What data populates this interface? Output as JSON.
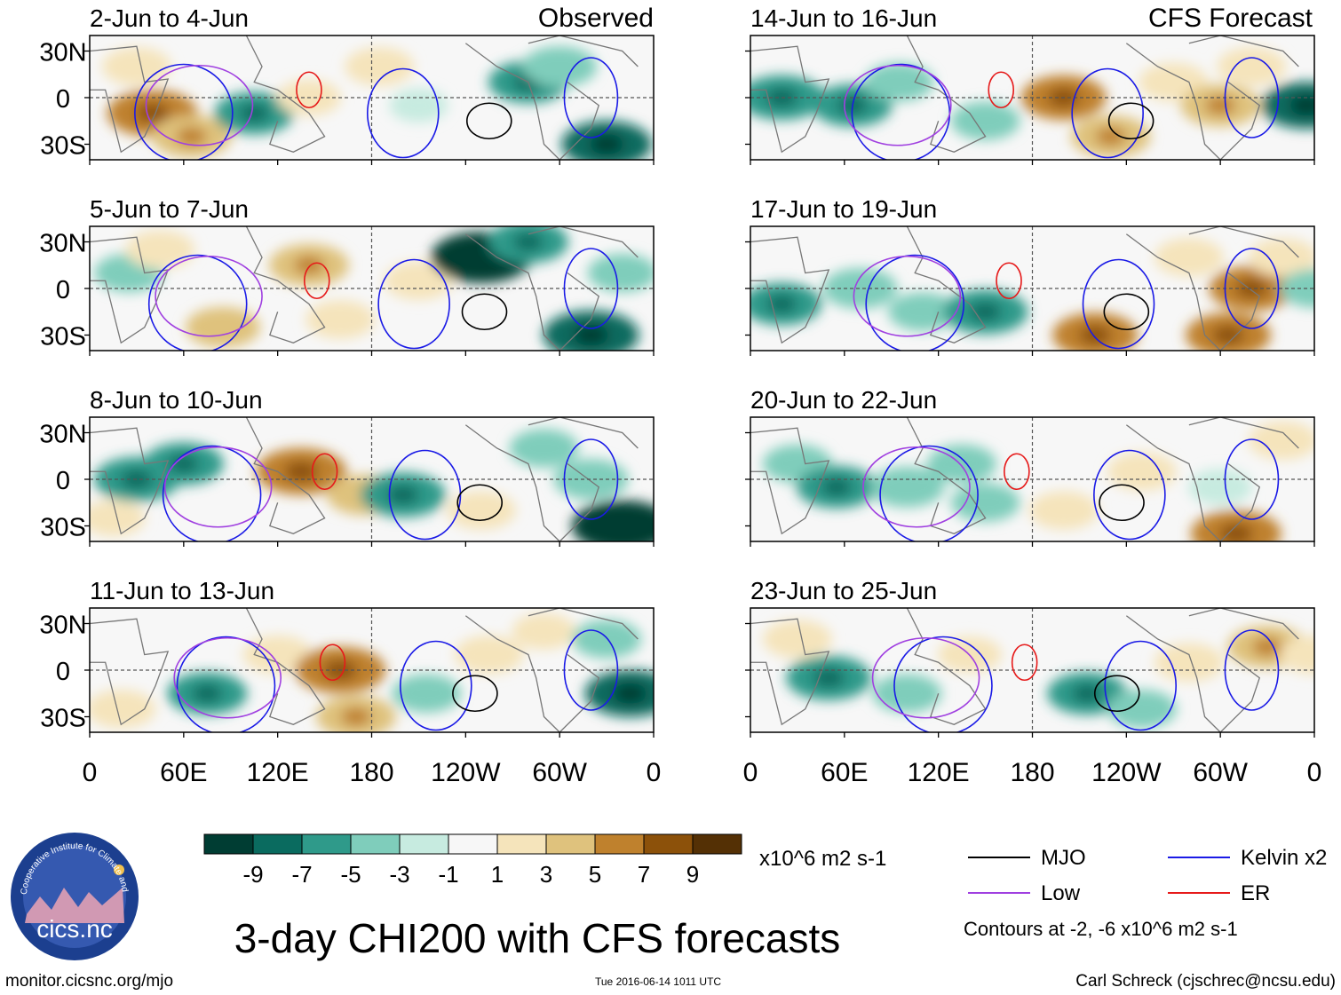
{
  "title": "3-day CHI200 with CFS forecasts",
  "left_header": "Observed",
  "right_header": "CFS Forecast",
  "units": "x10^6 m2 s-1",
  "contour_note": "Contours at -2, -6 x10^6 m2 s-1",
  "footer": {
    "url": "monitor.cicsnc.org/mjo",
    "timestamp": "Tue 2016-06-14 1011 UTC",
    "author": "Carl Schreck (cjschrec@ncsu.edu)"
  },
  "logo": {
    "text": "cics.nc",
    "ring_text": "Cooperative Institute for Climate and Satellites"
  },
  "chart_data": {
    "type": "heatmap",
    "variable": "CHI200 anomaly",
    "lat_labels": [
      "30N",
      "0",
      "30S"
    ],
    "lon_labels": [
      "0",
      "60E",
      "120E",
      "180",
      "120W",
      "60W",
      "0"
    ],
    "lat_range": [
      -40,
      40
    ],
    "lon_range": [
      0,
      360
    ],
    "panels": [
      {
        "id": "p1",
        "label": "2-Jun to 4-Jun",
        "kind": "Observed"
      },
      {
        "id": "p2",
        "label": "5-Jun to 7-Jun",
        "kind": "Observed"
      },
      {
        "id": "p3",
        "label": "8-Jun to 10-Jun",
        "kind": "Observed"
      },
      {
        "id": "p4",
        "label": "11-Jun to 13-Jun",
        "kind": "Observed"
      },
      {
        "id": "p5",
        "label": "14-Jun to 16-Jun",
        "kind": "CFS Forecast"
      },
      {
        "id": "p6",
        "label": "17-Jun to 19-Jun",
        "kind": "CFS Forecast"
      },
      {
        "id": "p7",
        "label": "20-Jun to 22-Jun",
        "kind": "CFS Forecast"
      },
      {
        "id": "p8",
        "label": "23-Jun to 25-Jun",
        "kind": "CFS Forecast"
      }
    ],
    "colorbar": {
      "tick_labels": [
        "-9",
        "-7",
        "-5",
        "-3",
        "-1",
        "1",
        "3",
        "5",
        "7",
        "9"
      ],
      "colors": [
        "#003d33",
        "#0a6b5f",
        "#2f9a8a",
        "#7fcdbb",
        "#c7ebe0",
        "#f7f7f7",
        "#f5e4bb",
        "#dfc27d",
        "#bf812d",
        "#8c510a",
        "#543005"
      ]
    },
    "legend": [
      {
        "name": "MJO",
        "color": "#000000"
      },
      {
        "name": "Kelvin x2",
        "color": "#1a1ae6"
      },
      {
        "name": "Low",
        "color": "#a040e0"
      },
      {
        "name": "ER",
        "color": "#e61a1a"
      }
    ],
    "contour_levels": [
      -2,
      -6
    ],
    "anomaly_blobs": [
      [
        {
          "lon": 40,
          "lat": -10,
          "v": 7
        },
        {
          "lon": 65,
          "lat": -25,
          "v": 5
        },
        {
          "lon": 30,
          "lat": 20,
          "v": 3
        },
        {
          "lon": 105,
          "lat": -10,
          "v": -5
        },
        {
          "lon": 140,
          "lat": 0,
          "v": 2
        },
        {
          "lon": 185,
          "lat": 20,
          "v": 3
        },
        {
          "lon": 210,
          "lat": -5,
          "v": -1
        },
        {
          "lon": 280,
          "lat": 10,
          "v": -5
        },
        {
          "lon": 300,
          "lat": 20,
          "v": -4
        },
        {
          "lon": 330,
          "lat": -30,
          "v": -7
        }
      ],
      [
        {
          "lon": 25,
          "lat": 10,
          "v": -3
        },
        {
          "lon": 45,
          "lat": 25,
          "v": 3
        },
        {
          "lon": 85,
          "lat": -25,
          "v": 4
        },
        {
          "lon": 140,
          "lat": 15,
          "v": 5
        },
        {
          "lon": 160,
          "lat": -20,
          "v": 3
        },
        {
          "lon": 210,
          "lat": 5,
          "v": 3
        },
        {
          "lon": 250,
          "lat": 20,
          "v": -9
        },
        {
          "lon": 280,
          "lat": 30,
          "v": -5
        },
        {
          "lon": 320,
          "lat": -30,
          "v": -8
        },
        {
          "lon": 340,
          "lat": 10,
          "v": -3
        }
      ],
      [
        {
          "lon": 30,
          "lat": 0,
          "v": -6
        },
        {
          "lon": 60,
          "lat": 10,
          "v": -5
        },
        {
          "lon": 15,
          "lat": -25,
          "v": 2
        },
        {
          "lon": 135,
          "lat": 5,
          "v": 7
        },
        {
          "lon": 175,
          "lat": -10,
          "v": 4
        },
        {
          "lon": 200,
          "lat": -10,
          "v": -6
        },
        {
          "lon": 250,
          "lat": -20,
          "v": 3
        },
        {
          "lon": 290,
          "lat": 20,
          "v": -3
        },
        {
          "lon": 340,
          "lat": -30,
          "v": -9
        },
        {
          "lon": 320,
          "lat": 0,
          "v": -4
        }
      ],
      [
        {
          "lon": 20,
          "lat": -25,
          "v": 3
        },
        {
          "lon": 75,
          "lat": -15,
          "v": -5
        },
        {
          "lon": 120,
          "lat": 10,
          "v": 3
        },
        {
          "lon": 160,
          "lat": 0,
          "v": 7
        },
        {
          "lon": 170,
          "lat": -30,
          "v": 5
        },
        {
          "lon": 215,
          "lat": -15,
          "v": -3
        },
        {
          "lon": 255,
          "lat": 10,
          "v": 3
        },
        {
          "lon": 290,
          "lat": 25,
          "v": 2
        },
        {
          "lon": 345,
          "lat": -15,
          "v": -7
        },
        {
          "lon": 330,
          "lat": 20,
          "v": -3
        }
      ],
      [
        {
          "lon": 20,
          "lat": 0,
          "v": -6
        },
        {
          "lon": 65,
          "lat": -5,
          "v": -5
        },
        {
          "lon": 95,
          "lat": 10,
          "v": -3
        },
        {
          "lon": 150,
          "lat": -15,
          "v": -3
        },
        {
          "lon": 200,
          "lat": 0,
          "v": 6
        },
        {
          "lon": 230,
          "lat": -25,
          "v": 5
        },
        {
          "lon": 270,
          "lat": 10,
          "v": 3
        },
        {
          "lon": 300,
          "lat": -5,
          "v": 5
        },
        {
          "lon": 320,
          "lat": 20,
          "v": 3
        },
        {
          "lon": 355,
          "lat": -5,
          "v": -7
        }
      ],
      [
        {
          "lon": 20,
          "lat": -10,
          "v": -5
        },
        {
          "lon": 70,
          "lat": 0,
          "v": -4
        },
        {
          "lon": 110,
          "lat": -15,
          "v": -3
        },
        {
          "lon": 150,
          "lat": -15,
          "v": -6
        },
        {
          "lon": 220,
          "lat": -30,
          "v": 6
        },
        {
          "lon": 280,
          "lat": 20,
          "v": 3
        },
        {
          "lon": 320,
          "lat": 0,
          "v": 6
        },
        {
          "lon": 305,
          "lat": -30,
          "v": 6
        },
        {
          "lon": 340,
          "lat": 20,
          "v": 3
        },
        {
          "lon": 360,
          "lat": 0,
          "v": -3
        }
      ],
      [
        {
          "lon": 30,
          "lat": 10,
          "v": -3
        },
        {
          "lon": 55,
          "lat": -5,
          "v": -5
        },
        {
          "lon": 100,
          "lat": -5,
          "v": -4
        },
        {
          "lon": 135,
          "lat": 10,
          "v": -3
        },
        {
          "lon": 150,
          "lat": -15,
          "v": -3
        },
        {
          "lon": 200,
          "lat": -20,
          "v": 3
        },
        {
          "lon": 250,
          "lat": 5,
          "v": 3
        },
        {
          "lon": 310,
          "lat": -35,
          "v": 7
        },
        {
          "lon": 340,
          "lat": 25,
          "v": 3
        },
        {
          "lon": 300,
          "lat": -5,
          "v": -2
        }
      ],
      [
        {
          "lon": 30,
          "lat": 20,
          "v": 3
        },
        {
          "lon": 50,
          "lat": -5,
          "v": -6
        },
        {
          "lon": 100,
          "lat": -15,
          "v": -3
        },
        {
          "lon": 140,
          "lat": 10,
          "v": 2
        },
        {
          "lon": 215,
          "lat": -15,
          "v": -5
        },
        {
          "lon": 250,
          "lat": -25,
          "v": -3
        },
        {
          "lon": 280,
          "lat": 5,
          "v": 3
        },
        {
          "lon": 330,
          "lat": 15,
          "v": 5
        },
        {
          "lon": 360,
          "lat": 10,
          "v": 3
        }
      ]
    ]
  }
}
